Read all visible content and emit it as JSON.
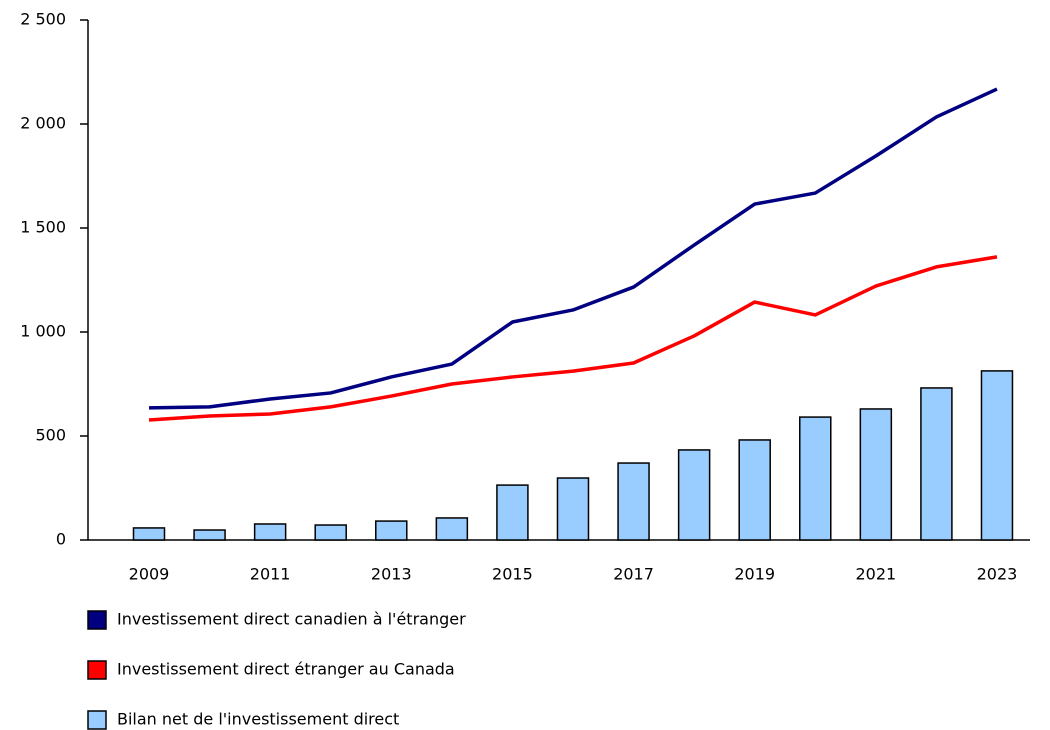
{
  "chart_data": {
    "type": "bar-line",
    "categories": [
      "2009",
      null,
      "2011",
      null,
      "2013",
      null,
      "2015",
      null,
      "2017",
      null,
      "2019",
      null,
      "2021",
      null,
      "2023"
    ],
    "series": [
      {
        "name": "Investissement direct canadien à l'étranger",
        "type": "line",
        "color": "#000080",
        "values": [
          635,
          640,
          678,
          707,
          784,
          846,
          1048,
          1106,
          1216,
          1418,
          1615,
          1668,
          1846,
          2034,
          2168
        ]
      },
      {
        "name": "Investissement direct étranger au Canada",
        "type": "line",
        "color": "#ff0000",
        "values": [
          577,
          596,
          606,
          640,
          692,
          750,
          784,
          812,
          851,
          981,
          1144,
          1082,
          1221,
          1313,
          1361
        ]
      },
      {
        "name": "Bilan net de l'investissement direct",
        "type": "bar",
        "color": "#99ccff",
        "values": [
          58,
          48,
          77,
          72,
          91,
          106,
          264,
          298,
          370,
          433,
          481,
          591,
          630,
          731,
          813
        ]
      }
    ],
    "ylim": [
      0,
      2500
    ],
    "yticks": [
      0,
      500,
      {
        "value": 1000,
        "label": "1 000"
      },
      {
        "value": 1500,
        "label": "1 500"
      },
      {
        "value": 2000,
        "label": "2 000"
      },
      {
        "value": 2500,
        "label": "2 500"
      }
    ],
    "grid": false
  }
}
